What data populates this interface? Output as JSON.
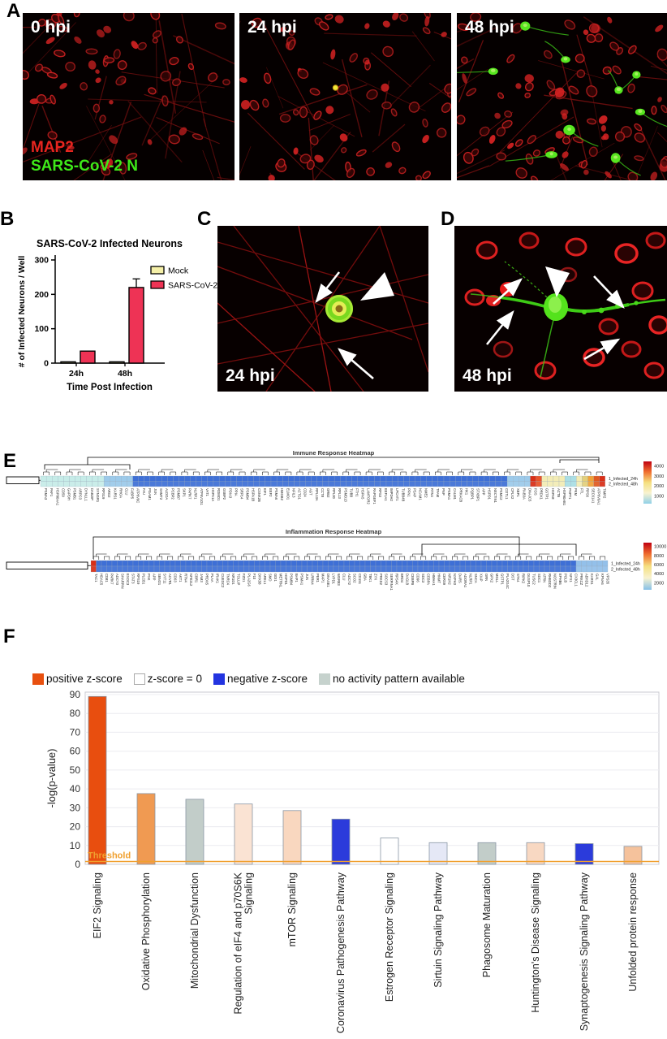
{
  "figure": {
    "panel_labels": {
      "a": "A",
      "b": "B",
      "c": "C",
      "d": "D",
      "e": "E",
      "f": "F"
    }
  },
  "panel_a": {
    "images": [
      {
        "time_label": "0 hpi"
      },
      {
        "time_label": "24 hpi"
      },
      {
        "time_label": "48 hpi"
      }
    ],
    "stains": {
      "map2": {
        "label": "MAP2",
        "color": "#e8251f"
      },
      "n_protein": {
        "label": "SARS-CoV-2 N",
        "color": "#3ee819"
      }
    }
  },
  "panel_c": {
    "time_label": "24 hpi"
  },
  "panel_d": {
    "time_label": "48 hpi"
  },
  "chart_data": [
    {
      "id": "infected_neurons",
      "type": "bar",
      "title": "SARS-CoV-2 Infected Neurons",
      "xlabel": "Time Post Infection",
      "ylabel": "# of Infected Neurons / Well",
      "ylim": [
        0,
        300
      ],
      "yticks": [
        0,
        100,
        200,
        300
      ],
      "categories": [
        "24h",
        "48h"
      ],
      "series": [
        {
          "name": "Mock",
          "color": "#f5f0a8",
          "values": [
            2,
            2
          ],
          "errors": [
            1,
            1
          ]
        },
        {
          "name": "SARS-CoV-2",
          "color": "#ee3355",
          "values": [
            35,
            220
          ],
          "errors": [
            5,
            25
          ]
        }
      ],
      "legend_position": "right"
    },
    {
      "id": "pathway_enrichment",
      "type": "bar",
      "ylabel": "-log(p-value)",
      "ylim": [
        0,
        90
      ],
      "yticks": [
        0,
        10,
        20,
        30,
        40,
        50,
        60,
        70,
        80,
        90
      ],
      "threshold": {
        "label": "Threshold",
        "value": 1.5,
        "color": "#f0a030"
      },
      "legend": [
        {
          "label": "positive z-score",
          "color": "#e8500f",
          "border": "#e8500f"
        },
        {
          "label": "z-score = 0",
          "color": "#ffffff",
          "border": "#aaaaaa"
        },
        {
          "label": "negative z-score",
          "color": "#2334e0",
          "border": "#2334e0"
        },
        {
          "label": "no activity pattern available",
          "color": "#c6d2cd",
          "border": "#c6d2cd"
        }
      ],
      "bars": [
        {
          "label": "EIF2 Signaling",
          "value": 89,
          "color": "#e84e0f"
        },
        {
          "label": "Oxidative Phosphorylation",
          "value": 37.5,
          "color": "#f09a52"
        },
        {
          "label": "Mitochondrial Dysfunction",
          "value": 34.5,
          "color": "#c2cdc9"
        },
        {
          "label": "Regulation of eIF4 and p70S6K Signaling",
          "value": 32,
          "color": "#fae3d3"
        },
        {
          "label": "mTOR Signaling",
          "value": 28.5,
          "color": "#f9d7bf"
        },
        {
          "label": "Coronavirus Pathogenesis Pathway",
          "value": 24,
          "color": "#2b3bdb"
        },
        {
          "label": "Estrogen Receptor Signaling",
          "value": 14,
          "color": "#ffffff"
        },
        {
          "label": "Sirtuin Signaling Pathway",
          "value": 11.5,
          "color": "#e5e8f6"
        },
        {
          "label": "Phagosome Maturation",
          "value": 11.5,
          "color": "#c2cdc9"
        },
        {
          "label": "Huntington's Disease Signaling",
          "value": 11.5,
          "color": "#f8d8c2"
        },
        {
          "label": "Synaptogenesis Signaling Pathway",
          "value": 11,
          "color": "#2b3bdb"
        },
        {
          "label": "Unfolded protein response",
          "value": 9.5,
          "color": "#f5c29c"
        }
      ]
    },
    {
      "id": "immune_heatmap",
      "type": "heatmap",
      "title": "Immune Response Heatmap",
      "rows": [
        "1_Infected_24h",
        "2_Infected_48h"
      ],
      "colorbar": {
        "ticks": [
          "4000",
          "3000",
          "2000",
          "1000"
        ],
        "colors": [
          "#c00010",
          "#f07030",
          "#f5e080",
          "#f8f2d0",
          "#90d0e8"
        ]
      },
      "columns": [
        [
          "PSMA3",
          "#c6ece8"
        ],
        [
          "PAF1",
          "#c6ece8"
        ],
        [
          "HSP90AA1",
          "#c6ece8"
        ],
        [
          "CD59",
          "#c6ece8"
        ],
        [
          "GAPDH",
          "#c6ece8"
        ],
        [
          "PSMB1",
          "#c6ece8"
        ],
        [
          "ARPC3",
          "#c6ece8"
        ],
        [
          "DYNLL1",
          "#c6ece8"
        ],
        [
          "DAB2IP",
          "#c6ece8"
        ],
        [
          "SYNGR1",
          "#c6ece8"
        ],
        [
          "RPS19",
          "#c6ece8"
        ],
        [
          "ARG2",
          "#9ccaea"
        ],
        [
          "KARS1",
          "#9ccaea"
        ],
        [
          "RHOA",
          "#9ccaea"
        ],
        [
          "CLU",
          "#9ccaea"
        ],
        [
          "FABP5",
          "#9ccaea"
        ],
        [
          "ATP6V0C",
          "#3e6fd6"
        ],
        [
          "FAU",
          "#3e6fd6"
        ],
        [
          "PGAM1",
          "#3e6fd6"
        ],
        [
          "JUN",
          "#3e6fd6"
        ],
        [
          "SHMT2",
          "#3e6fd6"
        ],
        [
          "ALDOA",
          "#3e6fd6"
        ],
        [
          "PCBP2",
          "#3e6fd6"
        ],
        [
          "PSMB7",
          "#3e6fd6"
        ],
        [
          "SKP1",
          "#3e6fd6"
        ],
        [
          "PARK7",
          "#3e6fd6"
        ],
        [
          "NLRP1",
          "#3e6fd6"
        ],
        [
          "ATP6V1G1",
          "#3e6fd6"
        ],
        [
          "VAT1",
          "#3e6fd6"
        ],
        [
          "HSPA1A",
          "#3e6fd6"
        ],
        [
          "ROMO1",
          "#3e6fd6"
        ],
        [
          "GSBP2",
          "#3e6fd6"
        ],
        [
          "PDIA3",
          "#3e6fd6"
        ],
        [
          "PPIA",
          "#3e6fd6"
        ],
        [
          "SRP14",
          "#3e6fd6"
        ],
        [
          "PSMB4",
          "#3e6fd6"
        ],
        [
          "HSPA1B",
          "#3e6fd6"
        ],
        [
          "CSNK2B",
          "#3e6fd6"
        ],
        [
          "EIF1",
          "#3e6fd6"
        ],
        [
          "EEF2",
          "#3e6fd6"
        ],
        [
          "PSMA6",
          "#3e6fd6"
        ],
        [
          "HMGB2",
          "#3e6fd6"
        ],
        [
          "ELMO1",
          "#3e6fd6"
        ],
        [
          "NFIL3",
          "#3e6fd6"
        ],
        [
          "ACTG1",
          "#3e6fd6"
        ],
        [
          "CD24",
          "#3e6fd6"
        ],
        [
          "AGT",
          "#3e6fd6"
        ],
        [
          "RPL13A",
          "#3e6fd6"
        ],
        [
          "CCT8",
          "#3e6fd6"
        ],
        [
          "GRB2",
          "#3e6fd6"
        ],
        [
          "RPL30",
          "#3e6fd6"
        ],
        [
          "RPL13",
          "#3e6fd6"
        ],
        [
          "PSMD13",
          "#3e6fd6"
        ],
        [
          "TUBB",
          "#3e6fd6"
        ],
        [
          "FTH1",
          "#3e6fd6"
        ],
        [
          "HSPA5",
          "#3e6fd6"
        ],
        [
          "LAMTOR2",
          "#3e6fd6"
        ],
        [
          "RAPGEF1",
          "#3e6fd6"
        ],
        [
          "RPS3",
          "#3e6fd6"
        ],
        [
          "EEF1A1",
          "#3e6fd6"
        ],
        [
          "IMPDH2",
          "#3e6fd6"
        ],
        [
          "LPCAT1",
          "#3e6fd6"
        ],
        [
          "TUBB4B",
          "#3e6fd6"
        ],
        [
          "PFN1",
          "#3e6fd6"
        ],
        [
          "PSAP",
          "#3e6fd6"
        ],
        [
          "NCAM1",
          "#3e6fd6"
        ],
        [
          "NME2",
          "#3e6fd6"
        ],
        [
          "RTN4",
          "#3e6fd6"
        ],
        [
          "TFAM",
          "#3e6fd6"
        ],
        [
          "PNP",
          "#3e6fd6"
        ],
        [
          "PSMA1",
          "#3e6fd6"
        ],
        [
          "CALM1",
          "#3e6fd6"
        ],
        [
          "PRKACB",
          "#3e6fd6"
        ],
        [
          "HK1",
          "#3e6fd6"
        ],
        [
          "PQBP1",
          "#3e6fd6"
        ],
        [
          "STXBP1",
          "#3e6fd6"
        ],
        [
          "APP",
          "#3e6fd6"
        ],
        [
          "HSPD1",
          "#3e6fd6"
        ],
        [
          "NECTIN1",
          "#3e6fd6"
        ],
        [
          "PSMC2",
          "#3e6fd6"
        ],
        [
          "COTL1",
          "#3e6fd6"
        ],
        [
          "CPLX2",
          "#9ccaea"
        ],
        [
          "XBP1",
          "#9ccaea"
        ],
        [
          "RAB3A",
          "#9ccaea"
        ],
        [
          "DNAJC5",
          "#9ccaea"
        ],
        [
          "FOS",
          "#d92e16"
        ],
        [
          "PRDX1",
          "#e8542a"
        ],
        [
          "GSTP1",
          "#f3ecb4"
        ],
        [
          "HSPA8",
          "#f3ecb4"
        ],
        [
          "ACTB",
          "#f3ecb4"
        ],
        [
          "HSP90AB1",
          "#f3ecb4"
        ],
        [
          "PHPT1",
          "#aadee4"
        ],
        [
          "PKM",
          "#aadee4"
        ],
        [
          "FTL",
          "#f3ecb4"
        ],
        [
          "RPS6",
          "#e3cf7a"
        ],
        [
          "SEC61A1",
          "#f0a238"
        ],
        [
          "ATP6V0A1",
          "#e05a20"
        ],
        [
          "TIMP2",
          "#d92e16"
        ]
      ]
    },
    {
      "id": "inflammation_heatmap",
      "type": "heatmap",
      "title": "Inflammation Response Heatmap",
      "rows": [
        "1_Infected_24h",
        "2_Infected_48h"
      ],
      "colorbar": {
        "ticks": [
          "10000",
          "8000",
          "6000",
          "4000",
          "2000"
        ],
        "colors": [
          "#c00010",
          "#f07030",
          "#f5e080",
          "#f8f2d0",
          "#85c0e8"
        ]
      },
      "columns": [
        [
          "TAC1",
          "#d92e16"
        ],
        [
          "HDAC5",
          "#3e6fd6"
        ],
        [
          "CD81",
          "#3e6fd6"
        ],
        [
          "PARK7",
          "#3e6fd6"
        ],
        [
          "ADCY3",
          "#3e6fd6"
        ],
        [
          "SHARPIN",
          "#3e6fd6"
        ],
        [
          "EXOC3",
          "#3e6fd6"
        ],
        [
          "STAT3",
          "#3e6fd6"
        ],
        [
          "RPS19",
          "#3e6fd6"
        ],
        [
          "PLCB1",
          "#3e6fd6"
        ],
        [
          "PXK",
          "#3e6fd6"
        ],
        [
          "APP",
          "#3e6fd6"
        ],
        [
          "SBNO1",
          "#3e6fd6"
        ],
        [
          "SYT11",
          "#3e6fd6"
        ],
        [
          "ACVR1",
          "#3e6fd6"
        ],
        [
          "CD63",
          "#3e6fd6"
        ],
        [
          "AKT1",
          "#3e6fd6"
        ],
        [
          "RTN4",
          "#3e6fd6"
        ],
        [
          "NFE2L2",
          "#3e6fd6"
        ],
        [
          "CBR1",
          "#3e6fd6"
        ],
        [
          "JAM3",
          "#3e6fd6"
        ],
        [
          "PRDX5",
          "#3e6fd6"
        ],
        [
          "PLAA",
          "#3e6fd6"
        ],
        [
          "IRAK1",
          "#3e6fd6"
        ],
        [
          "CUEDC2",
          "#3e6fd6"
        ],
        [
          "TNRC4",
          "#3e6fd6"
        ],
        [
          "NR1D1",
          "#3e6fd6"
        ],
        [
          "TOLLIP",
          "#3e6fd6"
        ],
        [
          "FZD1",
          "#3e6fd6"
        ],
        [
          "PLA2G6",
          "#3e6fd6"
        ],
        [
          "F10",
          "#3e6fd6"
        ],
        [
          "DHX58",
          "#3e6fd6"
        ],
        [
          "AREL1",
          "#3e6fd6"
        ],
        [
          "SMO",
          "#3e6fd6"
        ],
        [
          "GDI1",
          "#3e6fd6"
        ],
        [
          "METRNL",
          "#3e6fd6"
        ],
        [
          "HSPD1",
          "#3e6fd6"
        ],
        [
          "PSMB4",
          "#3e6fd6"
        ],
        [
          "BAP1",
          "#3e6fd6"
        ],
        [
          "PSMA1",
          "#3e6fd6"
        ],
        [
          "JUN",
          "#3e6fd6"
        ],
        [
          "LRRN4",
          "#3e6fd6"
        ],
        [
          "PER1",
          "#3e6fd6"
        ],
        [
          "MAP1",
          "#3e6fd6"
        ],
        [
          "DNASE1",
          "#3e6fd6"
        ],
        [
          "LYPD1",
          "#3e6fd6"
        ],
        [
          "WDR83",
          "#3e6fd6"
        ],
        [
          "CLU",
          "#3e6fd6"
        ],
        [
          "ADCY2",
          "#3e6fd6"
        ],
        [
          "SCO2",
          "#3e6fd6"
        ],
        [
          "CD151",
          "#3e6fd6"
        ],
        [
          "GBA",
          "#3e6fd6"
        ],
        [
          "TBK1",
          "#3e6fd6"
        ],
        [
          "ZYX",
          "#3e6fd6"
        ],
        [
          "PRKD2",
          "#3e6fd6"
        ],
        [
          "SOCS3",
          "#3e6fd6"
        ],
        [
          "SERPINA1",
          "#3e6fd6"
        ],
        [
          "RPS4X",
          "#3e6fd6"
        ],
        [
          "BRD4",
          "#3e6fd6"
        ],
        [
          "DAGLB",
          "#3e6fd6"
        ],
        [
          "CEBPB",
          "#3e6fd6"
        ],
        [
          "CD96",
          "#3e6fd6"
        ],
        [
          "SDC3",
          "#3e6fd6"
        ],
        [
          "CEBPA",
          "#3e6fd6"
        ],
        [
          "HMHA1",
          "#3e6fd6"
        ],
        [
          "HNMT",
          "#3e6fd6"
        ],
        [
          "CERS9",
          "#3e6fd6"
        ],
        [
          "NR1H2",
          "#3e6fd6"
        ],
        [
          "NXPH3",
          "#3e6fd6"
        ],
        [
          "DARS",
          "#3e6fd6"
        ],
        [
          "ADORA1",
          "#3e6fd6"
        ],
        [
          "NLRP1",
          "#3e6fd6"
        ],
        [
          "SNCA",
          "#3e6fd6"
        ],
        [
          "XIAP",
          "#3e6fd6"
        ],
        [
          "GRN",
          "#3e6fd6"
        ],
        [
          "GPX2",
          "#3e6fd6"
        ],
        [
          "MGLL",
          "#3e6fd6"
        ],
        [
          "GSTP1",
          "#3e6fd6"
        ],
        [
          "PLA2G4C",
          "#3e6fd6"
        ],
        [
          "DST",
          "#3e6fd6"
        ],
        [
          "STK4",
          "#3e6fd6"
        ],
        [
          "RIPK2",
          "#3e6fd6"
        ],
        [
          "DUSP10",
          "#3e6fd6"
        ],
        [
          "TUSC2",
          "#3e6fd6"
        ],
        [
          "SDC1",
          "#3e6fd6"
        ],
        [
          "ATRN",
          "#3e6fd6"
        ],
        [
          "RHBDD2",
          "#3e6fd6"
        ],
        [
          "NOSTRIN",
          "#3e6fd6"
        ],
        [
          "EPHB6",
          "#3e6fd6"
        ],
        [
          "POLB",
          "#3e6fd6"
        ],
        [
          "NFX1",
          "#3e6fd6"
        ],
        [
          "CX3CL1",
          "#3e6fd6"
        ],
        [
          "PRKCZ",
          "#93c0ea"
        ],
        [
          "ABHD12",
          "#93c0ea"
        ],
        [
          "KARS1",
          "#93c0ea"
        ],
        [
          "GAL",
          "#93c0ea"
        ],
        [
          "KPNA6",
          "#93c0ea"
        ],
        [
          "VPS35",
          "#93c0ea"
        ]
      ]
    }
  ]
}
